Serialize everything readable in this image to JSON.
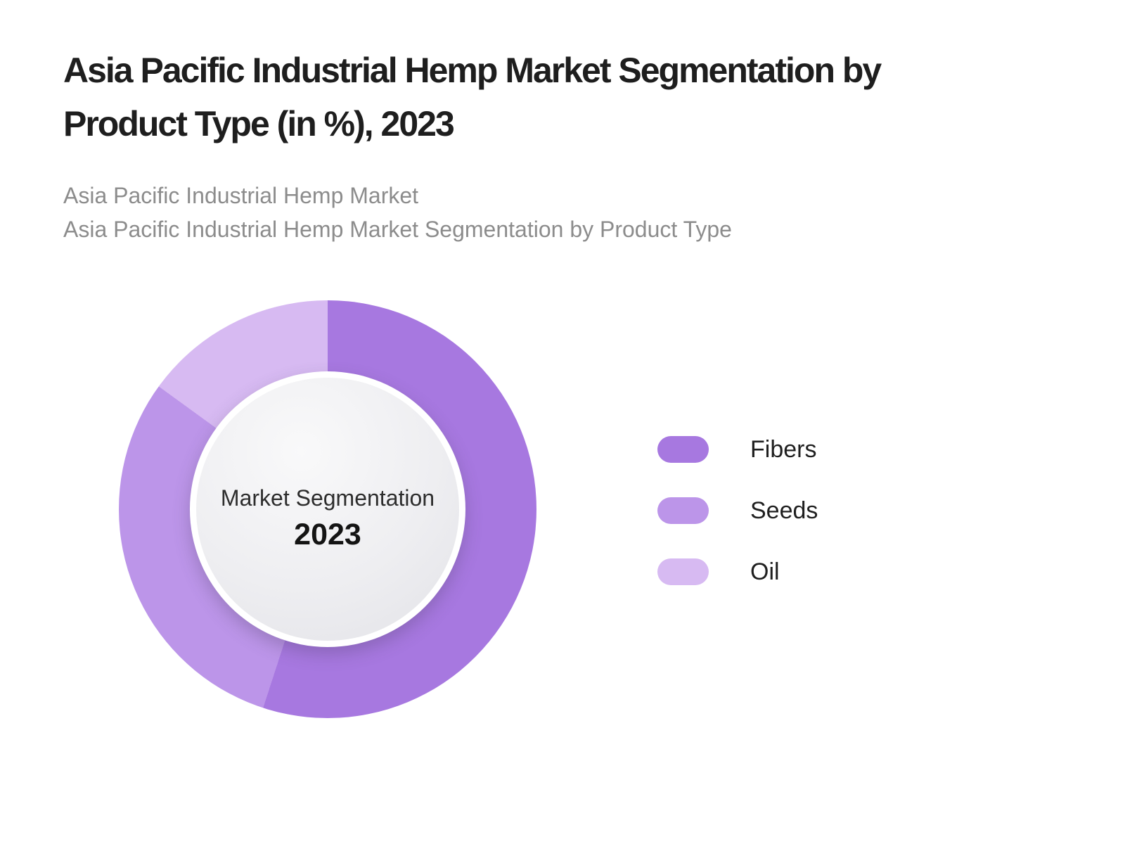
{
  "page": {
    "background_color": "#ffffff"
  },
  "header": {
    "title_line1": "Asia Pacific Industrial Hemp Market Segmentation by",
    "title_line2": "Product Type (in %), 2023",
    "subtitle_line1": "Asia Pacific Industrial Hemp Market",
    "subtitle_line2": "Asia Pacific Industrial Hemp Market Segmentation by Product Type"
  },
  "chart_data": {
    "type": "pie",
    "subtype": "donut",
    "title": "Asia Pacific Industrial Hemp Market Segmentation by Product Type (in %), 2023",
    "categories": [
      "Fibers",
      "Seeds",
      "Oil"
    ],
    "values": [
      55,
      30,
      15
    ],
    "unit": "%",
    "colors": [
      "#a778e0",
      "#bc95e9",
      "#d7baf2"
    ],
    "start_angle_deg": 0,
    "direction": "clockwise",
    "center_label": "Market Segmentation",
    "center_year": "2023",
    "legend_position": "right",
    "data_labels_shown": false,
    "hole_fill": "radial light gray gradient",
    "background": "#ffffff"
  }
}
